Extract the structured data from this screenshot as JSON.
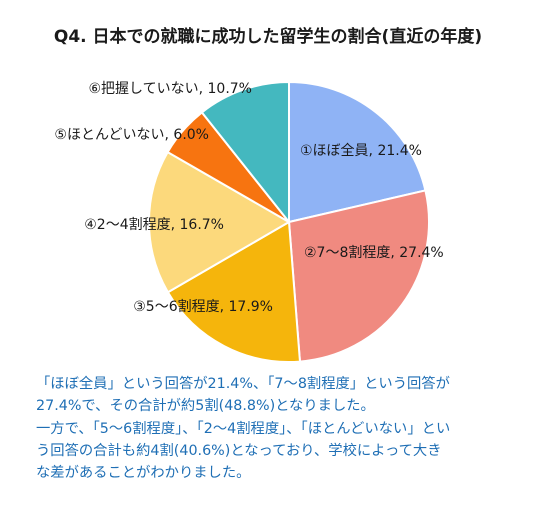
{
  "page": {
    "title": "Q4. 日本での就職に成功した留学生の割合(直近の年度)",
    "caption_lines": [
      "「ほぼ全員」という回答が21.4%、「7～8割程度」という回答が",
      "27.4%で、その合計が約5割(48.8%)となりました。",
      "一方で、「5～6割程度」、「2～4割程度」、「ほとんどいない」とい",
      "う回答の合計も約4割(40.6%)となっており、学校によって大き",
      "な差があることがわかりました。"
    ]
  },
  "chart_data": {
    "type": "pie",
    "title": "Q4. 日本での就職に成功した留学生の割合(直近の年度)",
    "start_angle_deg": 0,
    "direction": "clockwise",
    "slices": [
      {
        "label": "①ほぼ全員, 21.4%",
        "name": "ほぼ全員",
        "value": 21.4,
        "color": "#8fb3f5"
      },
      {
        "label": "②7～8割程度, 27.4%",
        "name": "7～8割程度",
        "value": 27.4,
        "color": "#f08a80"
      },
      {
        "label": "③5～6割程度, 17.9%",
        "name": "5～6割程度",
        "value": 17.9,
        "color": "#f5b50c"
      },
      {
        "label": "④2～4割程度, 16.7%",
        "name": "2～4割程度",
        "value": 16.7,
        "color": "#fcd97c"
      },
      {
        "label": "⑤ほとんどいない, 6.0%",
        "name": "ほとんどいない",
        "value": 6.0,
        "color": "#f77410"
      },
      {
        "label": "⑥把握していない, 10.7%",
        "name": "把握していない",
        "value": 10.7,
        "color": "#44b8bf"
      }
    ],
    "slice_stroke": "#ffffff"
  }
}
